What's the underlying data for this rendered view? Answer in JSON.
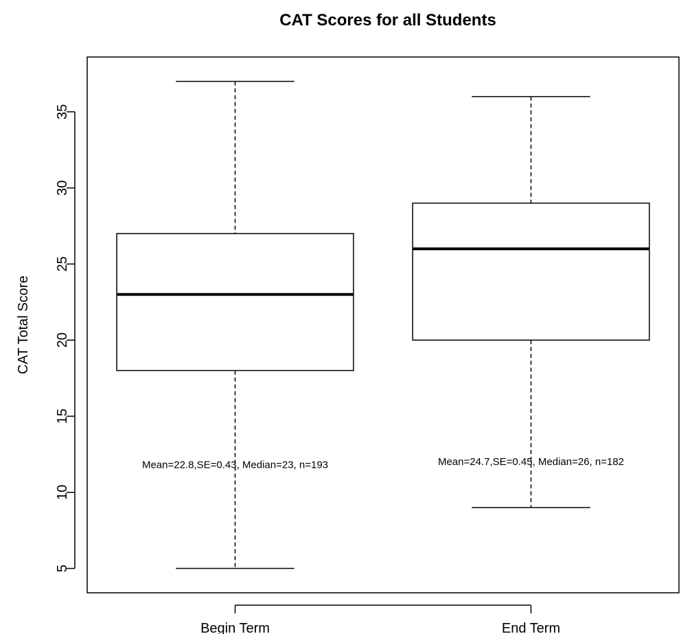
{
  "chart_data": {
    "type": "boxplot",
    "title": "CAT Scores for all Students",
    "xlabel": "",
    "ylabel": "CAT Total Score",
    "ylim": [
      3.4,
      38.6
    ],
    "yticks": [
      5,
      10,
      15,
      20,
      25,
      30,
      35
    ],
    "grid": false,
    "legend": "none",
    "colors": {
      "box_fill": "#ffffff",
      "stroke": "#000000"
    },
    "categories": [
      "Begin Term",
      "End Term"
    ],
    "boxes": [
      {
        "category": "Begin Term",
        "min": 5,
        "q1": 18,
        "median": 23,
        "q3": 27,
        "max": 37,
        "annotation": "Mean=22.8,SE=0.43, Median=23, n=193",
        "annotation_y": 11.6
      },
      {
        "category": "End Term",
        "min": 9,
        "q1": 20,
        "median": 26,
        "q3": 29,
        "max": 36,
        "annotation": "Mean=24.7,SE=0.45, Median=26, n=182",
        "annotation_y": 11.8
      }
    ]
  }
}
